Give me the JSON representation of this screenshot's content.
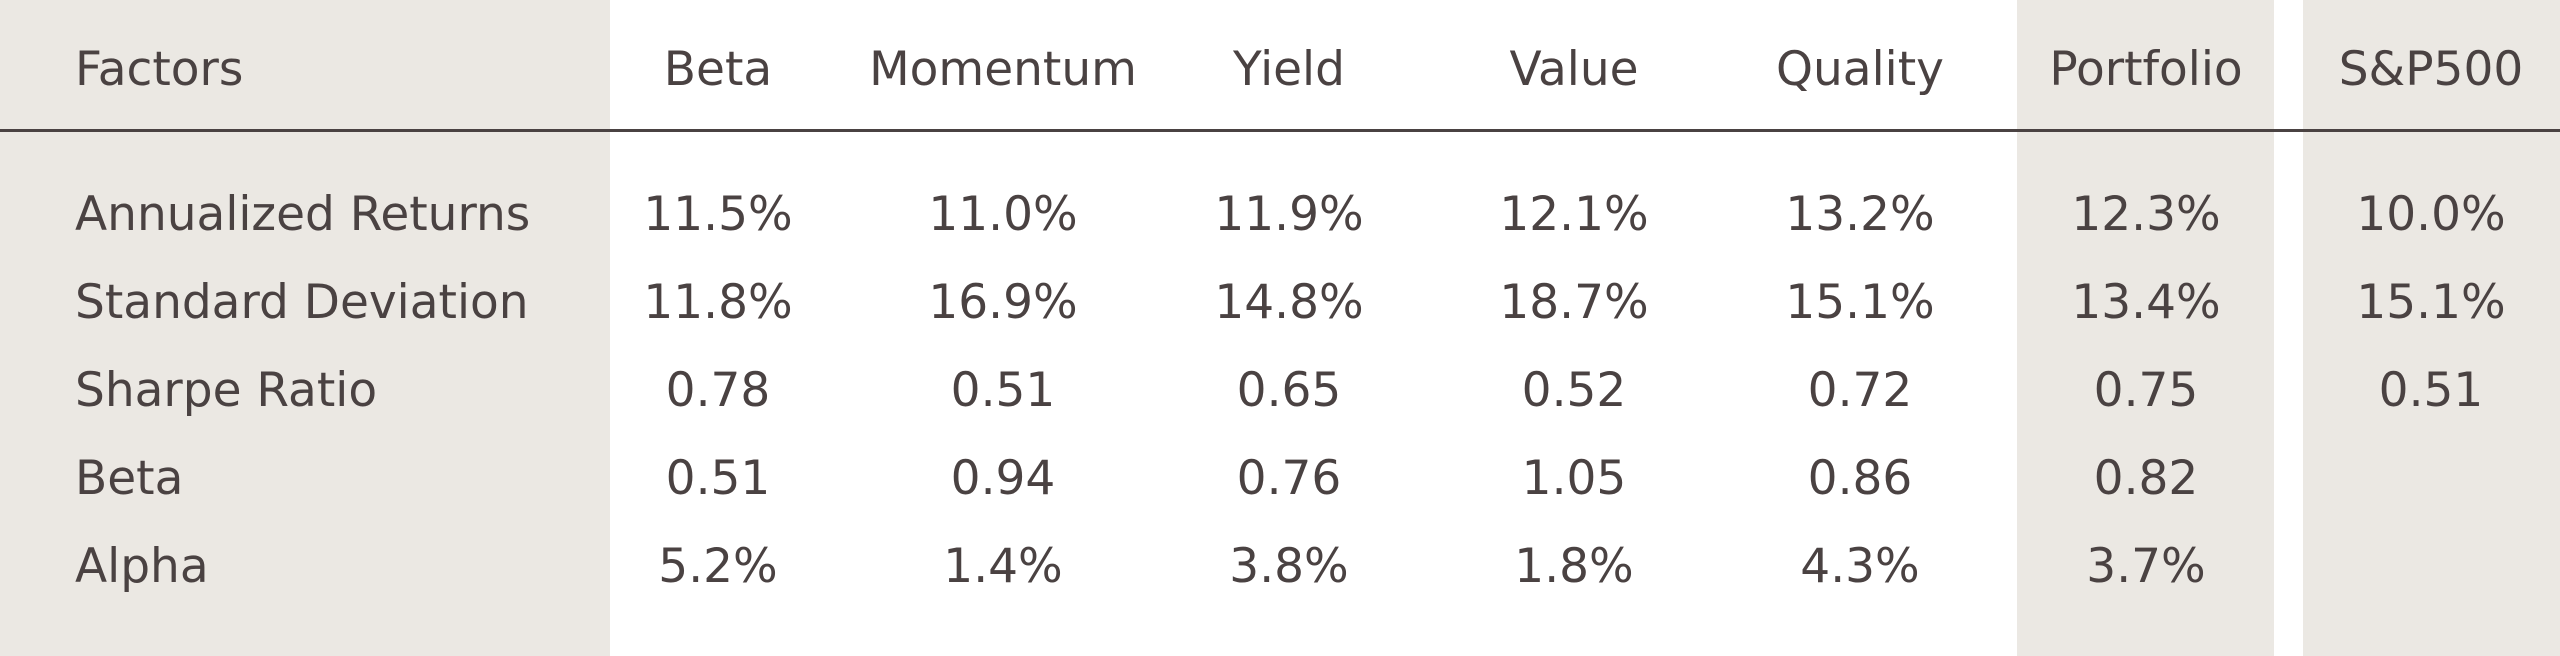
{
  "chart_data": {
    "type": "table",
    "columns": [
      "Factors",
      "Beta",
      "Momentum",
      "Yield",
      "Value",
      "Quality",
      "Portfolio",
      "S&P500"
    ],
    "rows": [
      {
        "label": "Annualized Returns",
        "values": [
          "11.5%",
          "11.0%",
          "11.9%",
          "12.1%",
          "13.2%",
          "12.3%",
          "10.0%"
        ]
      },
      {
        "label": "Standard Deviation",
        "values": [
          "11.8%",
          "16.9%",
          "14.8%",
          "18.7%",
          "15.1%",
          "13.4%",
          "15.1%"
        ]
      },
      {
        "label": "Sharpe Ratio",
        "values": [
          "0.78",
          "0.51",
          "0.65",
          "0.52",
          "0.72",
          "0.75",
          "0.51"
        ]
      },
      {
        "label": "Beta",
        "values": [
          "0.51",
          "0.94",
          "0.76",
          "1.05",
          "0.86",
          "0.82",
          ""
        ]
      },
      {
        "label": "Alpha",
        "values": [
          "5.2%",
          "1.4%",
          "3.8%",
          "1.8%",
          "4.3%",
          "3.7%",
          ""
        ]
      }
    ]
  },
  "colors": {
    "text": "#4a4242",
    "shade": "#ebe8e3",
    "background": "#ffffff",
    "rule": "#4a4242"
  }
}
